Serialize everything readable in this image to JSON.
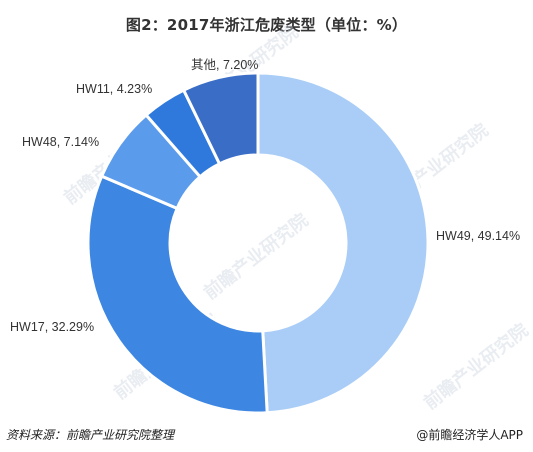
{
  "title": "图2：2017年浙江危废类型（单位：%）",
  "source": "资料来源：前瞻产业研究院整理",
  "credit": "@前瞻经济学人APP",
  "watermark": {
    "text": "前瞻产业研究院"
  },
  "colors": {
    "HW49": "#a9cdf7",
    "HW17": "#3d86e2",
    "HW48": "#5a9bec",
    "HW11": "#2f79dd",
    "其他": "#3a6dc6",
    "separator": "#ffffff"
  },
  "chart_data": {
    "type": "pie",
    "donut": true,
    "title": "图2：2017年浙江危废类型（单位：%）",
    "categories": [
      "HW49",
      "HW17",
      "HW48",
      "HW11",
      "其他"
    ],
    "values": [
      49.14,
      32.29,
      7.14,
      4.23,
      7.2
    ],
    "labels": [
      "HW49, 49.14%",
      "HW17, 32.29%",
      "HW48, 7.14%",
      "HW11, 4.23%",
      "其他, 7.20%"
    ],
    "start_angle": "12 o'clock",
    "direction": "clockwise",
    "legend": "none"
  }
}
